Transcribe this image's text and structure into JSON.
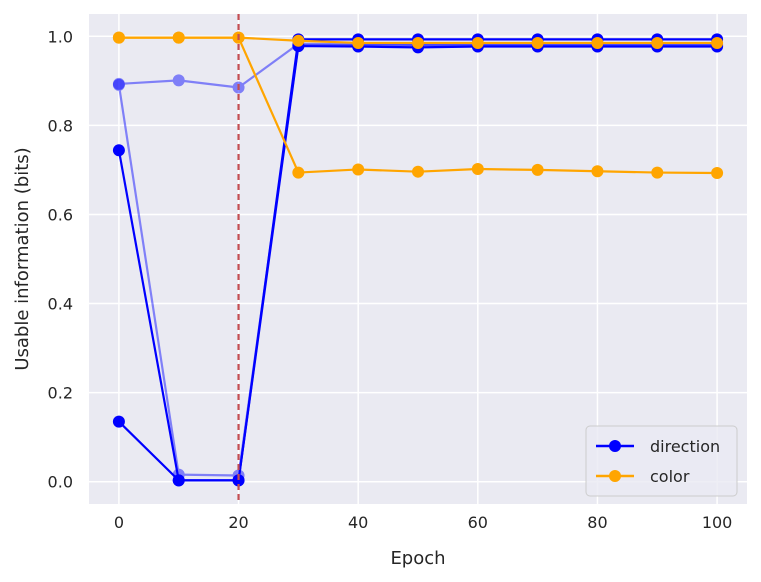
{
  "chart_data": {
    "type": "line",
    "xlabel": "Epoch",
    "ylabel": "Usable information (bits)",
    "xlim": [
      -5,
      105
    ],
    "ylim": [
      -0.05,
      1.05
    ],
    "xticks": [
      0,
      20,
      40,
      60,
      80,
      100
    ],
    "yticks": [
      0.0,
      0.2,
      0.4,
      0.6,
      0.8,
      1.0
    ],
    "xtick_labels": [
      "0",
      "20",
      "40",
      "60",
      "80",
      "100"
    ],
    "ytick_labels": [
      "0.0",
      "0.2",
      "0.4",
      "0.6",
      "0.8",
      "1.0"
    ],
    "grid": true,
    "background": "#eaeaf2",
    "vline": {
      "x": 20,
      "color": "#c44e52",
      "style": "dashed"
    },
    "legend": {
      "placement": "lower right",
      "entries": [
        {
          "label": "direction",
          "color": "#0000ff"
        },
        {
          "label": "color",
          "color": "#ffa500"
        }
      ]
    },
    "series": [
      {
        "group": "direction",
        "color": "#0000ff",
        "alpha": 1.0,
        "x": [
          0,
          10,
          20,
          30,
          40,
          50,
          60,
          70,
          80,
          90,
          100
        ],
        "y": [
          0.135,
          0.003,
          0.003,
          0.993,
          0.993,
          0.993,
          0.993,
          0.993,
          0.993,
          0.993,
          0.993
        ]
      },
      {
        "group": "direction",
        "color": "#0000ff",
        "alpha": 1.0,
        "x": [
          0,
          10,
          20,
          30,
          40,
          50,
          60,
          70,
          80,
          90,
          100
        ],
        "y": [
          0.744,
          0.003,
          0.003,
          0.978,
          0.977,
          0.975,
          0.977,
          0.977,
          0.977,
          0.977,
          0.977
        ]
      },
      {
        "group": "direction",
        "color": "#0000ff",
        "alpha": 0.45,
        "x": [
          0,
          10,
          20,
          30,
          40,
          50,
          60,
          70,
          80,
          90,
          100
        ],
        "y": [
          0.893,
          0.901,
          0.885,
          0.983,
          0.982,
          0.981,
          0.981,
          0.981,
          0.981,
          0.981,
          0.981
        ]
      },
      {
        "group": "direction",
        "color": "#0000ff",
        "alpha": 0.45,
        "x": [
          0,
          10,
          20,
          30,
          40,
          50,
          60,
          70,
          80,
          90,
          100
        ],
        "y": [
          0.891,
          0.016,
          0.014,
          0.98,
          0.98,
          0.98,
          0.98,
          0.98,
          0.98,
          0.98,
          0.98
        ]
      },
      {
        "group": "color",
        "color": "#ffa500",
        "alpha": 1.0,
        "x": [
          0,
          10,
          20,
          30,
          40,
          50,
          60,
          70,
          80,
          90,
          100
        ],
        "y": [
          0.997,
          0.997,
          0.997,
          0.99,
          0.985,
          0.985,
          0.985,
          0.985,
          0.985,
          0.985,
          0.985
        ]
      },
      {
        "group": "color",
        "color": "#ffa500",
        "alpha": 1.0,
        "x": [
          0,
          10,
          20,
          30,
          40,
          50,
          60,
          70,
          80,
          90,
          100
        ],
        "y": [
          0.997,
          0.997,
          0.997,
          0.694,
          0.701,
          0.696,
          0.702,
          0.7,
          0.697,
          0.694,
          0.693
        ]
      }
    ]
  }
}
